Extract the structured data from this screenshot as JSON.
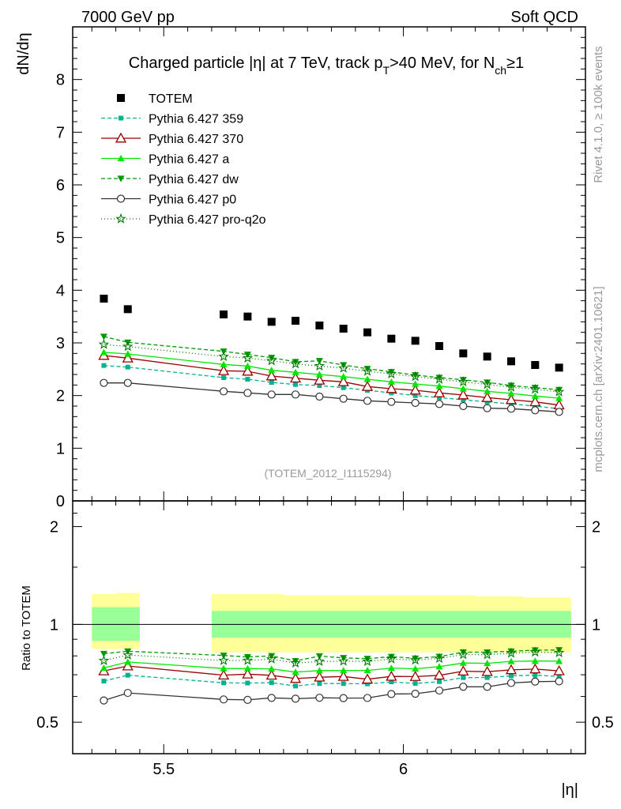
{
  "chart_data": {
    "type": "scatter",
    "header_left": "7000 GeV pp",
    "header_right": "Soft QCD",
    "title": {
      "main": "Charged particle |η| at 7 TeV, track p",
      "sub_T": "T",
      "mid": ">40 MeV, for N",
      "sub_ch": "ch",
      "tail": "≥1"
    },
    "ylabel_main": "dN/dη",
    "ylabel_ratio": "Ratio to TOTEM",
    "xlabel": "|η|",
    "ylim_main": [
      0,
      9
    ],
    "ylim_ratio": [
      0.4,
      2.4
    ],
    "yticks_main": [
      "0",
      "1",
      "2",
      "3",
      "4",
      "5",
      "6",
      "7",
      "8"
    ],
    "yticks_ratio": [
      "0.5",
      "1",
      "2"
    ],
    "xlim": [
      5.31,
      6.38
    ],
    "xticks": [
      "5.5",
      "6"
    ],
    "analysis_tag": "(TOTEM_2012_I1115294)",
    "side_text_top": "Rivet 4.1.0, ≥ 100k events",
    "side_text_bottom": "mcplots.cern.ch [arXiv:2401.10621]",
    "totem": {
      "name": "TOTEM",
      "x": [
        5.375,
        5.425,
        5.625,
        5.675,
        5.725,
        5.775,
        5.825,
        5.875,
        5.925,
        5.975,
        6.025,
        6.075,
        6.125,
        6.175,
        6.225,
        6.275,
        6.325
      ],
      "y": [
        3.84,
        3.64,
        3.54,
        3.5,
        3.4,
        3.42,
        3.33,
        3.27,
        3.2,
        3.08,
        3.04,
        2.94,
        2.8,
        2.74,
        2.65,
        2.58,
        2.53
      ],
      "band_stat_low": [
        0.89,
        0.89,
        0.91,
        0.91,
        0.91,
        0.91,
        0.91,
        0.91,
        0.91,
        0.91,
        0.91,
        0.91,
        0.91,
        0.91,
        0.91,
        0.91,
        0.91
      ],
      "band_stat_high": [
        1.13,
        1.13,
        1.1,
        1.1,
        1.1,
        1.1,
        1.1,
        1.1,
        1.1,
        1.1,
        1.1,
        1.1,
        1.1,
        1.1,
        1.1,
        1.1,
        1.1
      ],
      "band_sys_low": [
        0.84,
        0.84,
        0.82,
        0.82,
        0.82,
        0.82,
        0.82,
        0.82,
        0.82,
        0.82,
        0.82,
        0.82,
        0.82,
        0.82,
        0.82,
        0.82,
        0.82
      ],
      "band_sys_high": [
        1.24,
        1.25,
        1.24,
        1.24,
        1.24,
        1.23,
        1.23,
        1.23,
        1.23,
        1.23,
        1.23,
        1.23,
        1.23,
        1.22,
        1.22,
        1.21,
        1.21
      ]
    },
    "series": [
      {
        "name": "Pythia 6.427 359",
        "color": "#00b38f",
        "dash": "5,3",
        "marker": "square_small",
        "values": [
          2.57,
          2.54,
          2.34,
          2.31,
          2.25,
          2.21,
          2.19,
          2.15,
          2.1,
          2.05,
          2.0,
          1.96,
          1.92,
          1.88,
          1.84,
          1.8,
          1.75
        ]
      },
      {
        "name": "Pythia 6.427 370",
        "color": "#990000",
        "dash": "",
        "marker": "triangle_open",
        "values": [
          2.76,
          2.71,
          2.47,
          2.46,
          2.37,
          2.33,
          2.29,
          2.26,
          2.17,
          2.13,
          2.1,
          2.05,
          2.01,
          1.96,
          1.92,
          1.88,
          1.82
        ]
      },
      {
        "name": "Pythia 6.427 a",
        "color": "#00e600",
        "dash": "",
        "marker": "triangle_up",
        "values": [
          2.82,
          2.79,
          2.59,
          2.56,
          2.48,
          2.44,
          2.4,
          2.36,
          2.31,
          2.26,
          2.22,
          2.18,
          2.13,
          2.08,
          2.04,
          1.99,
          1.95
        ]
      },
      {
        "name": "Pythia 6.427 dw",
        "color": "#009900",
        "dash": "5,3",
        "marker": "triangle_down",
        "values": [
          3.12,
          3.01,
          2.84,
          2.78,
          2.72,
          2.64,
          2.66,
          2.58,
          2.51,
          2.45,
          2.39,
          2.34,
          2.3,
          2.25,
          2.19,
          2.15,
          2.11
        ]
      },
      {
        "name": "Pythia 6.427 p0",
        "color": "#333333",
        "dash": "",
        "marker": "circle_open",
        "values": [
          2.24,
          2.24,
          2.08,
          2.05,
          2.02,
          2.02,
          1.98,
          1.94,
          1.9,
          1.88,
          1.86,
          1.84,
          1.8,
          1.76,
          1.75,
          1.72,
          1.69
        ]
      },
      {
        "name": "Pythia 6.427 pro-q2o",
        "color": "#007a00",
        "dash": "1,3",
        "marker": "star",
        "values": [
          2.97,
          2.93,
          2.74,
          2.71,
          2.66,
          2.6,
          2.56,
          2.52,
          2.46,
          2.41,
          2.36,
          2.31,
          2.26,
          2.21,
          2.16,
          2.12,
          2.07
        ]
      }
    ]
  }
}
